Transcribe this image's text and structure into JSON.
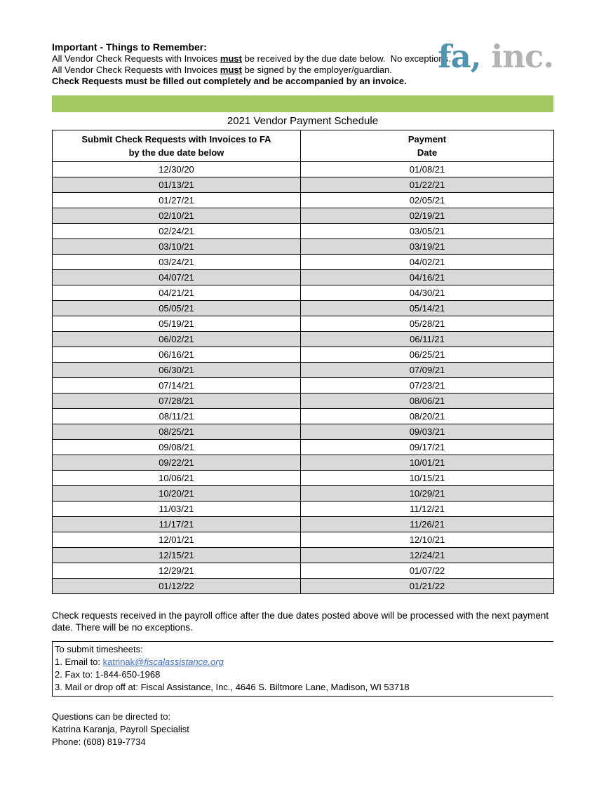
{
  "colors": {
    "bar_green": "#a3c761",
    "row_gray": "#d9d9d9",
    "link_blue": "#4472c4",
    "logo_blue": "#4f93b0",
    "logo_gray": "#b3b3b3"
  },
  "header": {
    "title": "Important - Things to Remember:",
    "line1_prefix": "All Vendor Check Requests with Invoices ",
    "line1_emphasis": "must",
    "line1_suffix": " be received by the due date below.  No exceptions.",
    "line2_prefix": "All Vendor Check Requests with Invoices ",
    "line2_emphasis": "must",
    "line2_suffix": " be signed by the employer/guardian.",
    "line3": "Check Requests must be filled out completely and be accompanied by an invoice."
  },
  "logo": {
    "part1": "fa,",
    "part2": " inc."
  },
  "schedule": {
    "title": "2021 Vendor Payment Schedule",
    "col1_header_line1": "Submit Check Requests with Invoices to FA",
    "col1_header_line2": "by the due date below",
    "col2_header_line1": "Payment",
    "col2_header_line2": "Date",
    "rows": [
      {
        "submit": "12/30/20",
        "payment": "01/08/21"
      },
      {
        "submit": "01/13/21",
        "payment": "01/22/21"
      },
      {
        "submit": "01/27/21",
        "payment": "02/05/21"
      },
      {
        "submit": "02/10/21",
        "payment": "02/19/21"
      },
      {
        "submit": "02/24/21",
        "payment": "03/05/21"
      },
      {
        "submit": "03/10/21",
        "payment": "03/19/21"
      },
      {
        "submit": "03/24/21",
        "payment": "04/02/21"
      },
      {
        "submit": "04/07/21",
        "payment": "04/16/21"
      },
      {
        "submit": "04/21/21",
        "payment": "04/30/21"
      },
      {
        "submit": "05/05/21",
        "payment": "05/14/21"
      },
      {
        "submit": "05/19/21",
        "payment": "05/28/21"
      },
      {
        "submit": "06/02/21",
        "payment": "06/11/21"
      },
      {
        "submit": "06/16/21",
        "payment": "06/25/21"
      },
      {
        "submit": "06/30/21",
        "payment": "07/09/21"
      },
      {
        "submit": "07/14/21",
        "payment": "07/23/21"
      },
      {
        "submit": "07/28/21",
        "payment": "08/06/21"
      },
      {
        "submit": "08/11/21",
        "payment": "08/20/21"
      },
      {
        "submit": "08/25/21",
        "payment": "09/03/21"
      },
      {
        "submit": "09/08/21",
        "payment": "09/17/21"
      },
      {
        "submit": "09/22/21",
        "payment": "10/01/21"
      },
      {
        "submit": "10/06/21",
        "payment": "10/15/21"
      },
      {
        "submit": "10/20/21",
        "payment": "10/29/21"
      },
      {
        "submit": "11/03/21",
        "payment": "11/12/21"
      },
      {
        "submit": "11/17/21",
        "payment": "11/26/21"
      },
      {
        "submit": "12/01/21",
        "payment": "12/10/21"
      },
      {
        "submit": "12/15/21",
        "payment": "12/24/21"
      },
      {
        "submit": "12/29/21",
        "payment": "01/07/22"
      },
      {
        "submit": "01/12/22",
        "payment": "01/21/22"
      }
    ]
  },
  "note": "Check requests received in the payroll office after the due dates posted above will be processed with the next payment date. There will be no exceptions.",
  "timesheets": {
    "heading": "To submit timesheets:",
    "email_prefix": "1. Email to: ",
    "email_user": "katrinak",
    "email_domain": "@fiscalassistance.org",
    "fax_line": "2. Fax to: 1-844-650-1968",
    "mail_line": "3. Mail or drop off at: Fiscal Assistance, Inc., 4646 S. Biltmore Lane, Madison, WI 53718"
  },
  "contact": {
    "line1": "Questions can be directed to:",
    "line2": "Katrina Karanja, Payroll Specialist",
    "line3": "Phone: (608) 819-7734"
  }
}
